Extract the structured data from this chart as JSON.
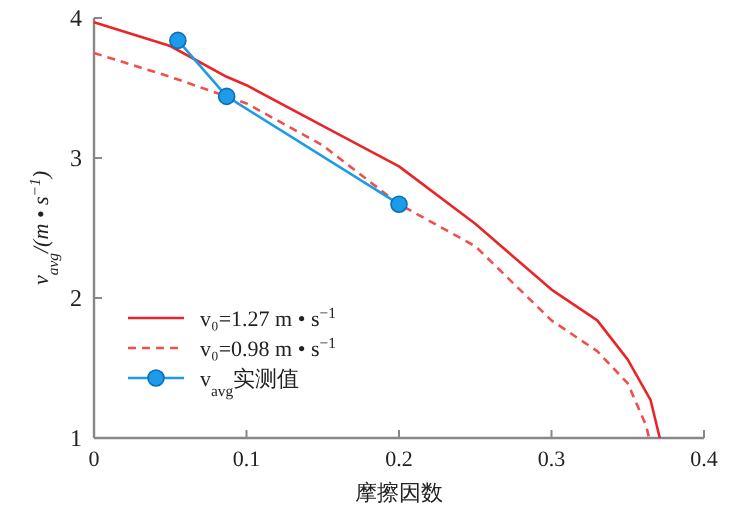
{
  "chart_data": {
    "type": "line",
    "xlabel": "摩擦因数",
    "ylabel": "v$_{avg}$/(m • s$^{−1}$)",
    "xlim": [
      0,
      0.4
    ],
    "ylim": [
      1,
      4
    ],
    "xticks": [
      0,
      0.1,
      0.2,
      0.3,
      0.4
    ],
    "yticks": [
      1,
      2,
      3,
      4
    ],
    "grid": false,
    "legend": "bottom left",
    "series": [
      {
        "name": "v₀=1.27 m • s$^{−1}$",
        "color": "#e8262a",
        "line_style": "solid",
        "marker": "none",
        "x": [
          0,
          0.05,
          0.087,
          0.1,
          0.15,
          0.2,
          0.25,
          0.3,
          0.33,
          0.35,
          0.365,
          0.371
        ],
        "values": [
          3.97,
          3.8,
          3.58,
          3.52,
          3.23,
          2.94,
          2.53,
          2.06,
          1.84,
          1.56,
          1.27,
          1.0
        ]
      },
      {
        "name": "v₀=0.98 m • s$^{−1}$",
        "color": "#f0504a",
        "line_style": "dashed",
        "marker": "none",
        "x": [
          0,
          0.05,
          0.1,
          0.15,
          0.2,
          0.25,
          0.3,
          0.33,
          0.35,
          0.362,
          0.364
        ],
        "values": [
          3.75,
          3.58,
          3.39,
          3.09,
          2.67,
          2.37,
          1.84,
          1.62,
          1.39,
          1.09,
          1.0
        ]
      },
      {
        "name": "v$_{avg}$实测值",
        "color": "#1e9be8",
        "line_style": "solid",
        "marker": "circle",
        "x": [
          0.055,
          0.087,
          0.2
        ],
        "values": [
          3.84,
          3.44,
          2.67
        ]
      }
    ]
  }
}
